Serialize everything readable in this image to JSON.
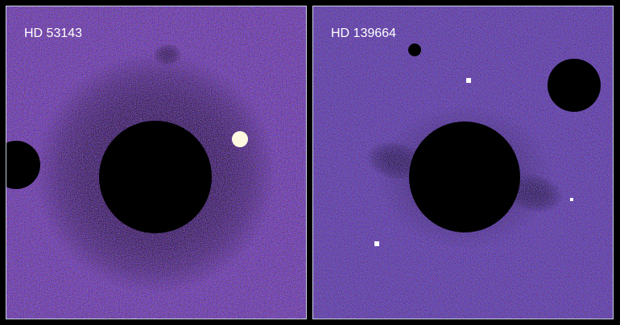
{
  "panels": [
    {
      "label": "HD 53143"
    },
    {
      "label": "HD 139664"
    }
  ]
}
